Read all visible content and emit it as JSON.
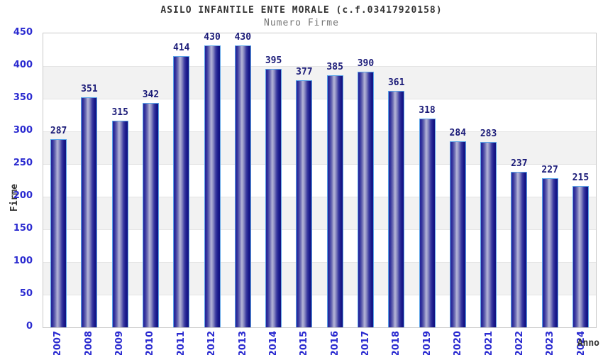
{
  "header": {
    "title": "ASILO INFANTILE ENTE MORALE (c.f.03417920158)",
    "subtitle": "Numero Firme"
  },
  "chart_data": {
    "type": "bar",
    "title": "ASILO INFANTILE ENTE MORALE (c.f.03417920158)",
    "subtitle": "Numero Firme",
    "xlabel": "Anno",
    "ylabel": "Firme",
    "categories": [
      "2007",
      "2008",
      "2009",
      "2010",
      "2011",
      "2012",
      "2013",
      "2014",
      "2015",
      "2016",
      "2017",
      "2018",
      "2019",
      "2020",
      "2021",
      "2022",
      "2023",
      "2024"
    ],
    "values": [
      287,
      351,
      315,
      342,
      414,
      430,
      430,
      395,
      377,
      385,
      390,
      361,
      318,
      284,
      283,
      237,
      227,
      215
    ],
    "ylim": [
      0,
      450
    ],
    "ytick_interval": 50,
    "yticks": [
      0,
      50,
      100,
      150,
      200,
      250,
      300,
      350,
      400,
      450
    ],
    "legend": "none",
    "grid": "horizontal-bands",
    "x_tick_rotation": 90,
    "colors": {
      "bar_dark": "#22229a",
      "bar_light": "#b6b6d8",
      "bar_outline": "#5ba4e8",
      "value_label": "#1b1b78",
      "tick_label": "#2a2ad0",
      "title": "#333333",
      "subtitle": "#767676",
      "band_gray": "#f2f2f2",
      "band_white": "#ffffff",
      "grid_line": "#e4e4e4",
      "plot_border": "#c9c9c9"
    }
  }
}
